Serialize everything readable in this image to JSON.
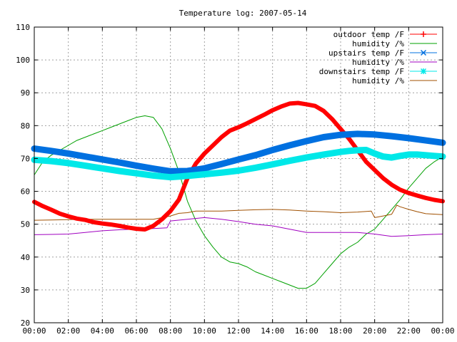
{
  "chart_data": {
    "type": "line",
    "title": "Temperature log: 2007-05-14",
    "xlabel": "",
    "ylabel": "",
    "xlim": [
      0,
      24
    ],
    "ylim": [
      20,
      110
    ],
    "grid": true,
    "legend_position": "top-right",
    "x_ticks": [
      "00:00",
      "02:00",
      "04:00",
      "06:00",
      "08:00",
      "10:00",
      "12:00",
      "14:00",
      "16:00",
      "18:00",
      "20:00",
      "22:00",
      "00:00"
    ],
    "y_ticks": [
      20,
      30,
      40,
      50,
      60,
      70,
      80,
      90,
      100,
      110
    ],
    "series": [
      {
        "name": "outdoor temp /F",
        "color": "#ff0000",
        "marker": "plus",
        "width": 6,
        "x": [
          0,
          0.5,
          1,
          1.5,
          2,
          2.5,
          3,
          3.5,
          4,
          4.5,
          5,
          5.5,
          6,
          6.5,
          7,
          7.5,
          8,
          8.5,
          9,
          9.5,
          10,
          10.5,
          11,
          11.5,
          12,
          12.5,
          13,
          13.5,
          14,
          14.5,
          15,
          15.5,
          16,
          16.5,
          17,
          17.5,
          18,
          18.5,
          19,
          19.5,
          20,
          20.5,
          21,
          21.5,
          22,
          22.5,
          23,
          23.5,
          24
        ],
        "y": [
          56.8,
          55.5,
          54.4,
          53.2,
          52.4,
          51.7,
          51.3,
          50.6,
          50.2,
          49.9,
          49.5,
          49.0,
          48.6,
          48.4,
          49.5,
          51.5,
          54.0,
          57.5,
          64.0,
          68.5,
          71.5,
          74.0,
          76.5,
          78.5,
          79.5,
          80.7,
          82.0,
          83.3,
          84.7,
          85.8,
          86.7,
          86.9,
          86.5,
          86.0,
          84.5,
          82.0,
          79.0,
          76.0,
          72.5,
          69.0,
          66.5,
          64.0,
          62.0,
          60.5,
          59.5,
          58.7,
          58.0,
          57.4,
          57.0
        ]
      },
      {
        "name": "humidity /%",
        "color": "#00a000",
        "marker": "none",
        "width": 1,
        "x": [
          0,
          0.5,
          1,
          1.5,
          2,
          2.5,
          3,
          3.5,
          4,
          4.5,
          5,
          5.5,
          6,
          6.5,
          7,
          7.5,
          8,
          8.5,
          9,
          9.5,
          10,
          10.5,
          11,
          11.5,
          12,
          12.5,
          13,
          13.5,
          14,
          14.5,
          15,
          15.5,
          16,
          16.5,
          17,
          17.5,
          18,
          18.5,
          19,
          19.5,
          20,
          20.5,
          21,
          21.5,
          22,
          22.5,
          23,
          23.5,
          24
        ],
        "y": [
          65.0,
          69.0,
          71.0,
          72.5,
          74.0,
          75.5,
          76.5,
          77.5,
          78.5,
          79.5,
          80.5,
          81.5,
          82.5,
          83.0,
          82.5,
          79.0,
          73.0,
          66.0,
          57.0,
          51.0,
          46.5,
          43.0,
          40.0,
          38.5,
          38.0,
          37.0,
          35.5,
          34.5,
          33.5,
          32.5,
          31.5,
          30.5,
          30.5,
          32.0,
          35.0,
          38.0,
          41.0,
          43.0,
          44.5,
          47.0,
          48.5,
          51.5,
          54.5,
          57.5,
          61.0,
          64.0,
          67.0,
          69.0,
          70.5
        ]
      },
      {
        "name": "upstairs temp /F",
        "color": "#0070e0",
        "marker": "cross",
        "width": 9,
        "x": [
          0,
          1,
          2,
          3,
          4,
          5,
          6,
          7,
          8,
          9,
          10,
          11,
          12,
          13,
          14,
          15,
          16,
          17,
          18,
          19,
          20,
          21,
          22,
          23,
          24
        ],
        "y": [
          73.0,
          72.3,
          71.5,
          70.6,
          69.7,
          68.8,
          67.8,
          66.9,
          66.1,
          66.2,
          67.0,
          68.3,
          69.7,
          71.0,
          72.6,
          74.0,
          75.3,
          76.5,
          77.2,
          77.5,
          77.3,
          76.8,
          76.2,
          75.5,
          74.8
        ]
      },
      {
        "name": "humidity /%",
        "color": "#a000c0",
        "marker": "none",
        "width": 1,
        "x": [
          0,
          1,
          2,
          3,
          4,
          5,
          6,
          7,
          7.8,
          8,
          9,
          10,
          11,
          12,
          13,
          14,
          15,
          16,
          17,
          18,
          19,
          20,
          21,
          22,
          23,
          24
        ],
        "y": [
          46.8,
          46.9,
          47.0,
          47.5,
          48.0,
          48.3,
          48.5,
          48.7,
          48.9,
          51.0,
          51.5,
          52.0,
          51.5,
          50.8,
          50.0,
          49.5,
          48.5,
          47.5,
          47.5,
          47.5,
          47.5,
          47.0,
          46.3,
          46.5,
          46.8,
          47.0
        ]
      },
      {
        "name": "downstairs temp /F",
        "color": "#00e8e8",
        "marker": "star",
        "width": 9,
        "x": [
          0,
          1,
          2,
          3,
          4,
          5,
          6,
          7,
          8,
          9,
          10,
          11,
          12,
          13,
          14,
          15,
          16,
          17,
          18,
          18.5,
          19,
          19.5,
          20,
          20.5,
          21,
          21.5,
          22,
          22.5,
          23,
          23.5,
          24
        ],
        "y": [
          69.6,
          69.2,
          68.6,
          67.8,
          67.0,
          66.2,
          65.5,
          64.8,
          64.3,
          64.7,
          65.2,
          65.7,
          66.3,
          67.2,
          68.2,
          69.3,
          70.3,
          71.2,
          72.0,
          72.3,
          72.5,
          72.6,
          71.5,
          70.6,
          70.3,
          70.8,
          71.2,
          71.2,
          71.0,
          70.8,
          70.6
        ]
      },
      {
        "name": "humidity /%",
        "color": "#a05000",
        "marker": "none",
        "width": 1,
        "x": [
          0,
          1,
          2,
          3,
          4,
          5,
          6,
          7,
          8,
          8.5,
          9,
          9.5,
          10,
          11,
          12,
          13,
          14,
          15,
          16,
          17,
          18,
          19,
          19.8,
          20,
          20.5,
          21,
          21.3,
          21.5,
          22,
          22.5,
          23,
          24
        ],
        "y": [
          51.2,
          51.3,
          51.4,
          51.5,
          51.5,
          51.5,
          51.5,
          51.5,
          52.5,
          53.3,
          53.5,
          54.0,
          54.0,
          54.0,
          54.2,
          54.4,
          54.5,
          54.3,
          54.0,
          53.8,
          53.5,
          53.7,
          54.0,
          52.0,
          52.5,
          53.0,
          55.8,
          55.3,
          54.5,
          53.8,
          53.2,
          52.9
        ]
      }
    ]
  }
}
